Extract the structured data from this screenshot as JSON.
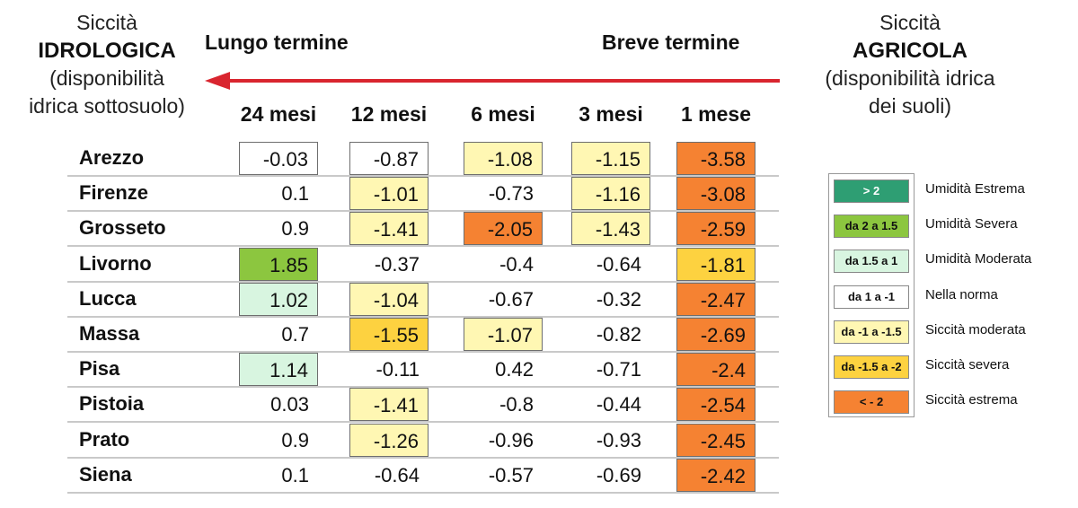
{
  "header_left": {
    "line1": "Siccità",
    "line2": "IDROLOGICA",
    "line3": "(disponibilità",
    "line4": "idrica sottosuolo)"
  },
  "header_right": {
    "line1": "Siccità",
    "line2": "AGRICOLA",
    "line3": "(disponibilità idrica",
    "line4": "dei suoli)"
  },
  "lungo_termine": "Lungo termine",
  "breve_termine": "Breve termine",
  "colors": {
    "arrow": "#d9252f",
    "umidita_estrema": "#2e9e73",
    "umidita_severa": "#8cc63f",
    "umidita_moderata": "#d8f5e0",
    "nella_norma": "#ffffff",
    "siccita_moderata": "#fff7b3",
    "siccita_severa": "#fdd240",
    "siccita_estrema": "#f58232"
  },
  "chart_data": {
    "type": "table",
    "columns": [
      "24 mesi",
      "12 mesi",
      "6 mesi",
      "3 mesi",
      "1 mese"
    ],
    "rows": [
      {
        "name": "Arezzo",
        "values": [
          "-0.03",
          "-0.87",
          "-1.08",
          "-1.15",
          "-3.58"
        ]
      },
      {
        "name": "Firenze",
        "values": [
          "0.1",
          "-1.01",
          "-0.73",
          "-1.16",
          "-3.08"
        ]
      },
      {
        "name": "Grosseto",
        "values": [
          "0.9",
          "-1.41",
          "-2.05",
          "-1.43",
          "-2.59"
        ]
      },
      {
        "name": "Livorno",
        "values": [
          "1.85",
          "-0.37",
          "-0.4",
          "-0.64",
          "-1.81"
        ]
      },
      {
        "name": "Lucca",
        "values": [
          "1.02",
          "-1.04",
          "-0.67",
          "-0.32",
          "-2.47"
        ]
      },
      {
        "name": "Massa",
        "values": [
          "0.7",
          "-1.55",
          "-1.07",
          "-0.82",
          "-2.69"
        ]
      },
      {
        "name": "Pisa",
        "values": [
          "1.14",
          "-0.11",
          "0.42",
          "-0.71",
          "-2.4"
        ]
      },
      {
        "name": "Pistoia",
        "values": [
          "0.03",
          "-1.41",
          "-0.8",
          "-0.44",
          "-2.54"
        ]
      },
      {
        "name": "Prato",
        "values": [
          "0.9",
          "-1.26",
          "-0.96",
          "-0.93",
          "-2.45"
        ]
      },
      {
        "name": "Siena",
        "values": [
          "0.1",
          "-0.64",
          "-0.57",
          "-0.69",
          "-2.42"
        ]
      }
    ],
    "legend": [
      {
        "range": "> 2",
        "label": "Umidità Estrema",
        "color_key": "umidita_estrema"
      },
      {
        "range": "da 2 a 1.5",
        "label": "Umidità Severa",
        "color_key": "umidita_severa"
      },
      {
        "range": "da 1.5 a 1",
        "label": "Umidità Moderata",
        "color_key": "umidita_moderata"
      },
      {
        "range": "da 1 a -1",
        "label": "Nella norma",
        "color_key": "nella_norma"
      },
      {
        "range": "da -1 a -1.5",
        "label": "Siccità moderata",
        "color_key": "siccita_moderata"
      },
      {
        "range": "da -1.5 a -2",
        "label": "Siccità severa",
        "color_key": "siccita_severa"
      },
      {
        "range": "< - 2",
        "label": "Siccità estrema",
        "color_key": "siccita_estrema"
      }
    ]
  }
}
